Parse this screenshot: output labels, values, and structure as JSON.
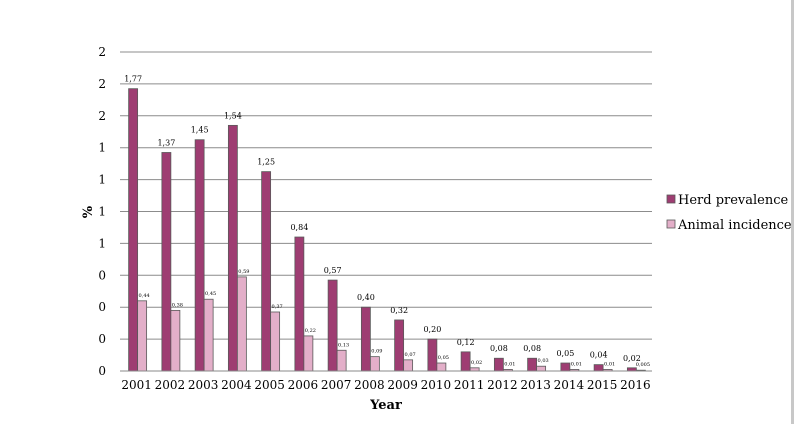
{
  "chart_data": {
    "type": "bar",
    "xlabel": "Year",
    "ylabel": "%",
    "ylim": [
      0,
      2
    ],
    "y_tick_labels": [
      "0",
      "0",
      "0",
      "1",
      "1",
      "1",
      "1",
      "2",
      "2",
      "2"
    ],
    "grid": true,
    "legend_position": "right",
    "categories": [
      "2001",
      "2002",
      "2003",
      "2004",
      "2005",
      "2006",
      "2007",
      "2008",
      "2009",
      "2010",
      "2011",
      "2012",
      "2013",
      "2014",
      "2015",
      "2016"
    ],
    "series": [
      {
        "name": "Herd prevalence",
        "color": "#9e3d72",
        "values": [
          1.77,
          1.37,
          1.45,
          1.54,
          1.25,
          0.84,
          0.57,
          0.4,
          0.32,
          0.2,
          0.12,
          0.08,
          0.08,
          0.05,
          0.04,
          0.02
        ],
        "labels": [
          "1,77",
          "1,37",
          "1,45",
          "1,54",
          "1,25",
          "0,84",
          "0,57",
          "0,40",
          "0,32",
          "0,20",
          "0,12",
          "0,08",
          "0,08",
          "0,05",
          "0,04",
          "0,02"
        ]
      },
      {
        "name": "Animal incidence",
        "color": "#e3afc9",
        "values": [
          0.44,
          0.38,
          0.45,
          0.59,
          0.37,
          0.22,
          0.13,
          0.09,
          0.07,
          0.05,
          0.02,
          0.01,
          0.03,
          0.01,
          0.01,
          0.005
        ],
        "labels": [
          "0,44",
          "0,38",
          "0,45",
          "0,59",
          "0,37",
          "0,22",
          "0,13",
          "0,09",
          "0,07",
          "0,05",
          "0,02",
          "0,01",
          "0,03",
          "0,01",
          "0,01",
          "0,005"
        ]
      }
    ]
  }
}
